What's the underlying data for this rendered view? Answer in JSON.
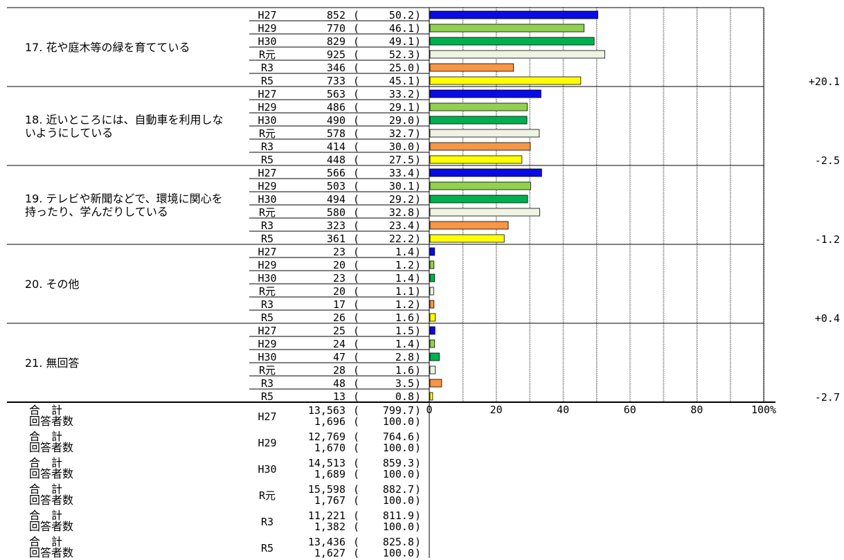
{
  "chart_data": {
    "type": "bar",
    "orientation": "horizontal",
    "xlim": [
      0,
      100
    ],
    "grid": true,
    "x_ticks": [
      "0",
      "20",
      "40",
      "60",
      "80",
      "100%"
    ],
    "year_labels": [
      "H27",
      "H29",
      "H30",
      "R元",
      "R3",
      "R5"
    ],
    "year_colors": [
      "#0a0ae6",
      "#92d050",
      "#00b050",
      "#eef3e2",
      "#f79646",
      "#ffff00"
    ],
    "groups": [
      {
        "label_lines": [
          "17. 花や庭木等の緑を育てている"
        ],
        "change": "+20.1",
        "rows": [
          {
            "year": "H27",
            "count": "852",
            "pct": "50.2",
            "value": 50.2
          },
          {
            "year": "H29",
            "count": "770",
            "pct": "46.1",
            "value": 46.1
          },
          {
            "year": "H30",
            "count": "829",
            "pct": "49.1",
            "value": 49.1
          },
          {
            "year": "R元",
            "count": "925",
            "pct": "52.3",
            "value": 52.3
          },
          {
            "year": "R3",
            "count": "346",
            "pct": "25.0",
            "value": 25.0
          },
          {
            "year": "R5",
            "count": "733",
            "pct": "45.1",
            "value": 45.1
          }
        ]
      },
      {
        "label_lines": [
          "18. 近いところには、自動車を利用しな",
          "いようにしている"
        ],
        "change": "-2.5",
        "rows": [
          {
            "year": "H27",
            "count": "563",
            "pct": "33.2",
            "value": 33.2
          },
          {
            "year": "H29",
            "count": "486",
            "pct": "29.1",
            "value": 29.1
          },
          {
            "year": "H30",
            "count": "490",
            "pct": "29.0",
            "value": 29.0
          },
          {
            "year": "R元",
            "count": "578",
            "pct": "32.7",
            "value": 32.7
          },
          {
            "year": "R3",
            "count": "414",
            "pct": "30.0",
            "value": 30.0
          },
          {
            "year": "R5",
            "count": "448",
            "pct": "27.5",
            "value": 27.5
          }
        ]
      },
      {
        "label_lines": [
          "19. テレビや新聞などで、環境に関心を",
          "持ったり、学んだりしている"
        ],
        "change": "-1.2",
        "rows": [
          {
            "year": "H27",
            "count": "566",
            "pct": "33.4",
            "value": 33.4
          },
          {
            "year": "H29",
            "count": "503",
            "pct": "30.1",
            "value": 30.1
          },
          {
            "year": "H30",
            "count": "494",
            "pct": "29.2",
            "value": 29.2
          },
          {
            "year": "R元",
            "count": "580",
            "pct": "32.8",
            "value": 32.8
          },
          {
            "year": "R3",
            "count": "323",
            "pct": "23.4",
            "value": 23.4
          },
          {
            "year": "R5",
            "count": "361",
            "pct": "22.2",
            "value": 22.2
          }
        ]
      },
      {
        "label_lines": [
          "20. その他"
        ],
        "change": "+0.4",
        "rows": [
          {
            "year": "H27",
            "count": "23",
            "pct": "1.4",
            "value": 1.4
          },
          {
            "year": "H29",
            "count": "20",
            "pct": "1.2",
            "value": 1.2
          },
          {
            "year": "H30",
            "count": "23",
            "pct": "1.4",
            "value": 1.4
          },
          {
            "year": "R元",
            "count": "20",
            "pct": "1.1",
            "value": 1.1
          },
          {
            "year": "R3",
            "count": "17",
            "pct": "1.2",
            "value": 1.2
          },
          {
            "year": "R5",
            "count": "26",
            "pct": "1.6",
            "value": 1.6
          }
        ]
      },
      {
        "label_lines": [
          "21. 無回答"
        ],
        "change": "-2.7",
        "rows": [
          {
            "year": "H27",
            "count": "25",
            "pct": "1.5",
            "value": 1.5
          },
          {
            "year": "H29",
            "count": "24",
            "pct": "1.4",
            "value": 1.4
          },
          {
            "year": "H30",
            "count": "47",
            "pct": "2.8",
            "value": 2.8
          },
          {
            "year": "R元",
            "count": "28",
            "pct": "1.6",
            "value": 1.6
          },
          {
            "year": "R3",
            "count": "48",
            "pct": "3.5",
            "value": 3.5
          },
          {
            "year": "R5",
            "count": "13",
            "pct": "0.8",
            "value": 0.8
          }
        ]
      }
    ],
    "totals": {
      "total_label": "合　計",
      "respondents_label": "回答者数",
      "rows": [
        {
          "year": "H27",
          "total": "13,563",
          "total_pct": "799.7",
          "respondents": "1,696",
          "respondents_pct": "100.0"
        },
        {
          "year": "H29",
          "total": "12,769",
          "total_pct": "764.6",
          "respondents": "1,670",
          "respondents_pct": "100.0"
        },
        {
          "year": "H30",
          "total": "14,513",
          "total_pct": "859.3",
          "respondents": "1,689",
          "respondents_pct": "100.0"
        },
        {
          "year": "R元",
          "total": "15,598",
          "total_pct": "882.7",
          "respondents": "1,767",
          "respondents_pct": "100.0"
        },
        {
          "year": "R3",
          "total": "11,221",
          "total_pct": "811.9",
          "respondents": "1,382",
          "respondents_pct": "100.0"
        },
        {
          "year": "R5",
          "total": "13,436",
          "total_pct": "825.8",
          "respondents": "1,627",
          "respondents_pct": "100.0"
        }
      ]
    }
  }
}
